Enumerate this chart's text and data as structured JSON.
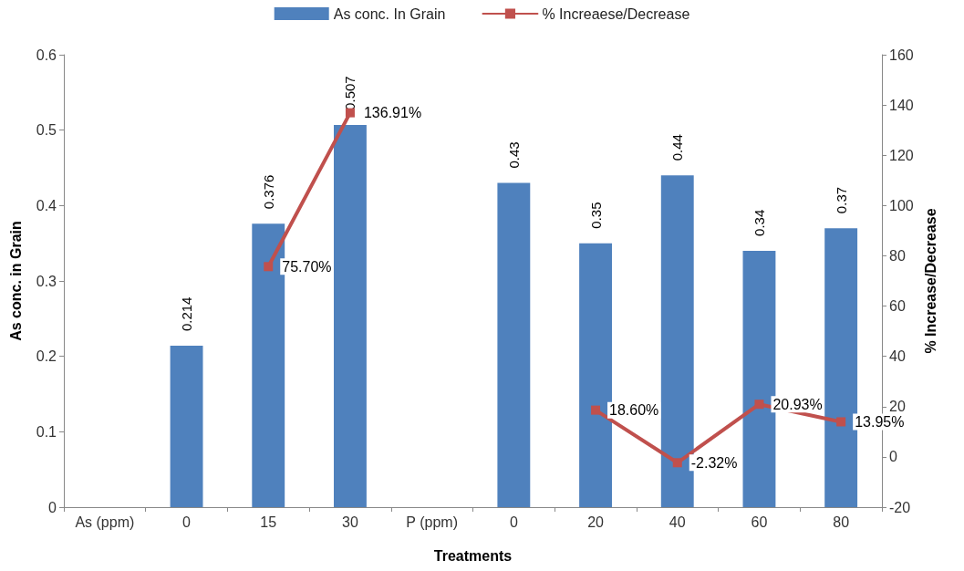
{
  "chart_data": {
    "type": "bar",
    "xlabel": "Treatments",
    "ylabel": "As conc. in Grain",
    "y2label": "% Increase/Decrease",
    "categories": [
      "As (ppm)",
      "0",
      "15",
      "30",
      "P (ppm)",
      "0",
      "20",
      "40",
      "60",
      "80"
    ],
    "series": [
      {
        "name": "As conc. In Grain",
        "type": "bar",
        "color": "#4f81bd",
        "values": [
          null,
          0.214,
          0.376,
          0.507,
          null,
          0.43,
          0.35,
          0.44,
          0.34,
          0.37
        ],
        "value_labels": [
          null,
          "0.214",
          "0.376",
          "0.507",
          null,
          "0.43",
          "0.35",
          "0.44",
          "0.34",
          "0.37"
        ]
      },
      {
        "name": "% Increaese/Decrease",
        "type": "line",
        "axis": "y2",
        "color": "#c0504d",
        "marker": "square",
        "values": [
          null,
          null,
          75.7,
          136.91,
          null,
          null,
          18.6,
          -2.32,
          20.93,
          13.95
        ],
        "value_labels": [
          null,
          null,
          "75.70%",
          "136.91%",
          null,
          null,
          "18.60%",
          "-2.32%",
          "20.93%",
          "13.95%"
        ]
      }
    ],
    "ylim": [
      0,
      0.6
    ],
    "yticks": [
      0,
      0.1,
      0.2,
      0.3,
      0.4,
      0.5,
      0.6
    ],
    "y2lim": [
      -20,
      160
    ],
    "y2ticks": [
      -20,
      0,
      20,
      40,
      60,
      80,
      100,
      120,
      140,
      160
    ],
    "grid": false,
    "legend": "top"
  }
}
